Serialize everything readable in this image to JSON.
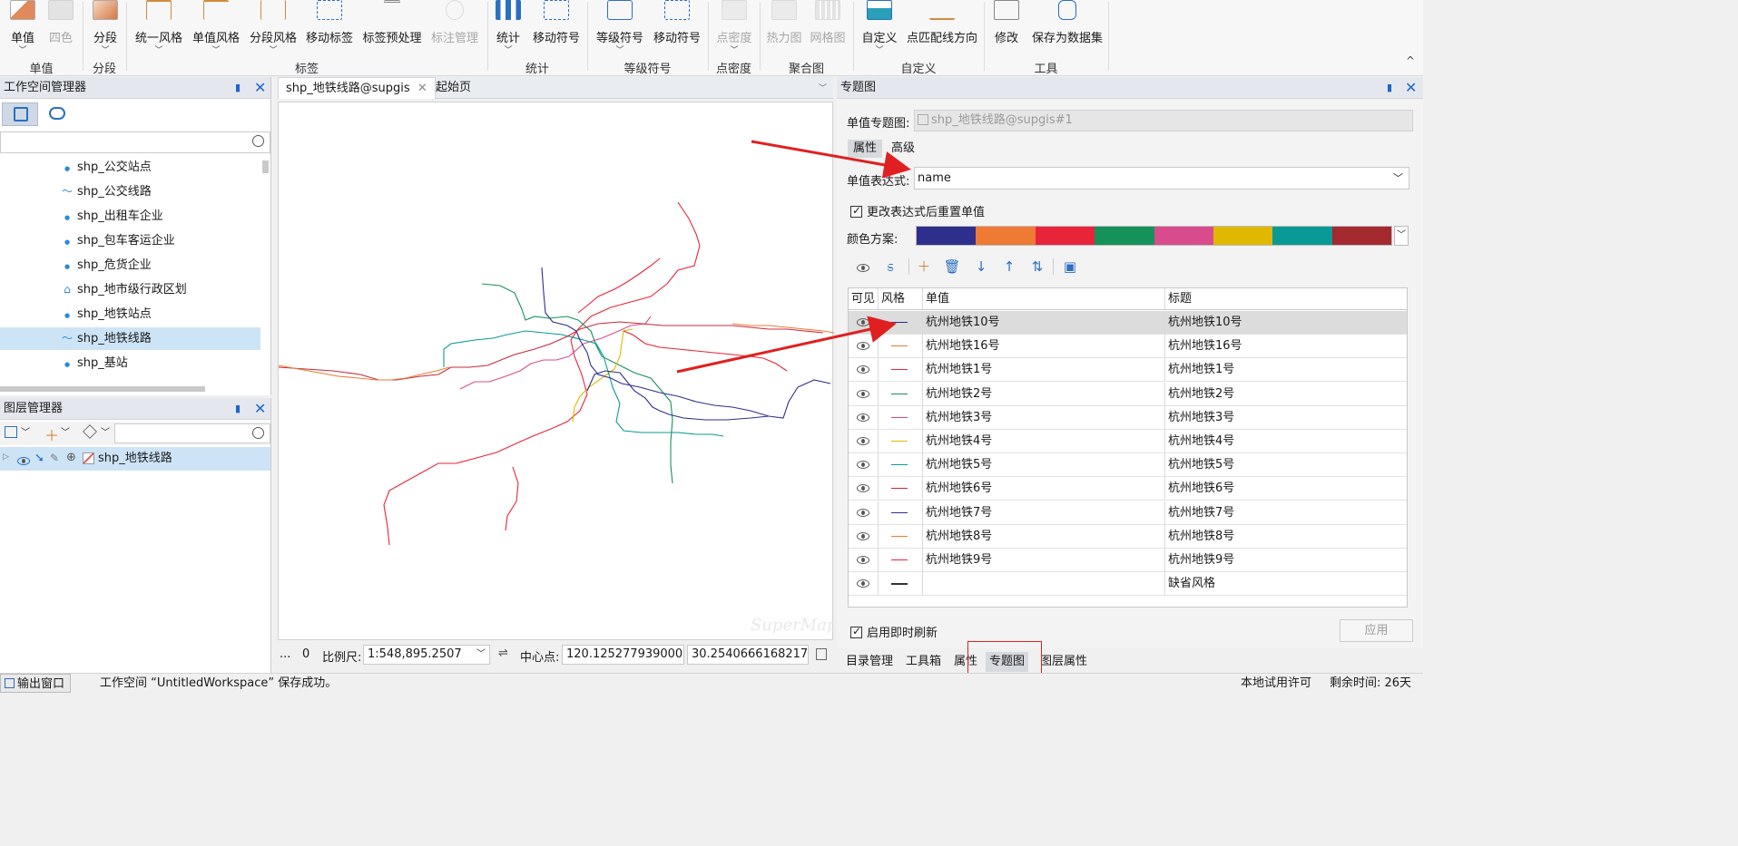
{
  "ribbon": {
    "buttons": [
      {
        "label": "单值",
        "enabled": true
      },
      {
        "label": "四色",
        "enabled": false
      },
      {
        "label": "分段",
        "enabled": true
      },
      {
        "label": "统一风格",
        "enabled": true
      },
      {
        "label": "单值风格",
        "enabled": true
      },
      {
        "label": "分段风格",
        "enabled": true
      },
      {
        "label": "移动标签",
        "enabled": true
      },
      {
        "label": "标签预处理",
        "enabled": true
      },
      {
        "label": "标注管理",
        "enabled": false
      },
      {
        "label": "统计",
        "enabled": true
      },
      {
        "label": "移动符号",
        "enabled": true
      },
      {
        "label": "等级符号",
        "enabled": true
      },
      {
        "label": "移动符号",
        "enabled": true
      },
      {
        "label": "点密度",
        "enabled": false
      },
      {
        "label": "热力图",
        "enabled": false
      },
      {
        "label": "网格图",
        "enabled": false
      },
      {
        "label": "自定义",
        "enabled": true
      },
      {
        "label": "点匹配线方向",
        "enabled": true
      },
      {
        "label": "修改",
        "enabled": true
      },
      {
        "label": "保存为数据集",
        "enabled": true
      }
    ],
    "groups": [
      "单值",
      "分段",
      "标签",
      "统计",
      "等级符号",
      "点密度",
      "聚合图",
      "自定义",
      "工具"
    ],
    "collapse_glyph": "^"
  },
  "workspace": {
    "title": "工作空间管理器",
    "search_placeholder": "",
    "items": [
      {
        "label": "shp_公交站点",
        "icon": "point-dataset-icon"
      },
      {
        "label": "shp_公交线路",
        "icon": "line-dataset-icon"
      },
      {
        "label": "shp_出租车企业",
        "icon": "point-dataset-icon"
      },
      {
        "label": "shp_包车客运企业",
        "icon": "point-dataset-icon"
      },
      {
        "label": "shp_危货企业",
        "icon": "point-dataset-icon"
      },
      {
        "label": "shp_地市级行政区划",
        "icon": "region-dataset-icon"
      },
      {
        "label": "shp_地铁站点",
        "icon": "point-dataset-icon"
      },
      {
        "label": "shp_地铁线路",
        "icon": "line-dataset-icon",
        "selected": true
      },
      {
        "label": "shp_基站",
        "icon": "point-dataset-icon"
      }
    ]
  },
  "layers": {
    "title": "图层管理器",
    "items": [
      {
        "label": "shp_地铁线路"
      }
    ]
  },
  "map": {
    "tabs": [
      "shp_地铁线路@supgis",
      "起始页"
    ],
    "watermark": "SuperMap",
    "status": {
      "ellipsis": "...",
      "count": "0",
      "scale_label": "比例尺:",
      "scale_value": "1:548,895.2507",
      "center_label": "中心点:",
      "center_x": "120.12527793900006",
      "center_y": "30.254066616821714"
    }
  },
  "theme": {
    "title": "专题图",
    "layer_label": "单值专题图:",
    "layer_value": "shp_地铁线路@supgis#1",
    "tabs": [
      "属性",
      "高级"
    ],
    "expression_label": "单值表达式:",
    "expression_value": "name",
    "reset_label": "更改表达式后重置单值",
    "color_label": "颜色方案:",
    "color_scheme": [
      "#2e2e8c",
      "#ef7a34",
      "#e8243a",
      "#14925a",
      "#d84c8e",
      "#e0b800",
      "#0a9a96",
      "#a52a30"
    ],
    "columns": [
      "可见",
      "风格",
      "单值",
      "标题"
    ],
    "rows": [
      {
        "value": "杭州地铁10号",
        "title": "杭州地铁10号",
        "color": "#2e2e8c"
      },
      {
        "value": "杭州地铁16号",
        "title": "杭州地铁16号",
        "color": "#ef7a34"
      },
      {
        "value": "杭州地铁1号",
        "title": "杭州地铁1号",
        "color": "#e8243a"
      },
      {
        "value": "杭州地铁2号",
        "title": "杭州地铁2号",
        "color": "#14925a"
      },
      {
        "value": "杭州地铁3号",
        "title": "杭州地铁3号",
        "color": "#d84c8e"
      },
      {
        "value": "杭州地铁4号",
        "title": "杭州地铁4号",
        "color": "#e0b800"
      },
      {
        "value": "杭州地铁5号",
        "title": "杭州地铁5号",
        "color": "#0a9a96"
      },
      {
        "value": "杭州地铁6号",
        "title": "杭州地铁6号",
        "color": "#c8283a"
      },
      {
        "value": "杭州地铁7号",
        "title": "杭州地铁7号",
        "color": "#2e2e8c"
      },
      {
        "value": "杭州地铁8号",
        "title": "杭州地铁8号",
        "color": "#ef7a34"
      },
      {
        "value": "杭州地铁9号",
        "title": "杭州地铁9号",
        "color": "#e8243a"
      },
      {
        "value": "",
        "title": "缺省风格",
        "color": "#333333"
      }
    ],
    "refresh_label": "启用即时刷新",
    "apply_label": "应用"
  },
  "bottom_tabs": [
    "目录管理",
    "工具箱",
    "属性",
    "专题图",
    "图层属性"
  ],
  "statusbar": {
    "output_label": "输出窗口",
    "message": "工作空间 “UntitledWorkspace” 保存成功。",
    "license": "本地试用许可",
    "remaining": "剩余时间: 26天"
  }
}
